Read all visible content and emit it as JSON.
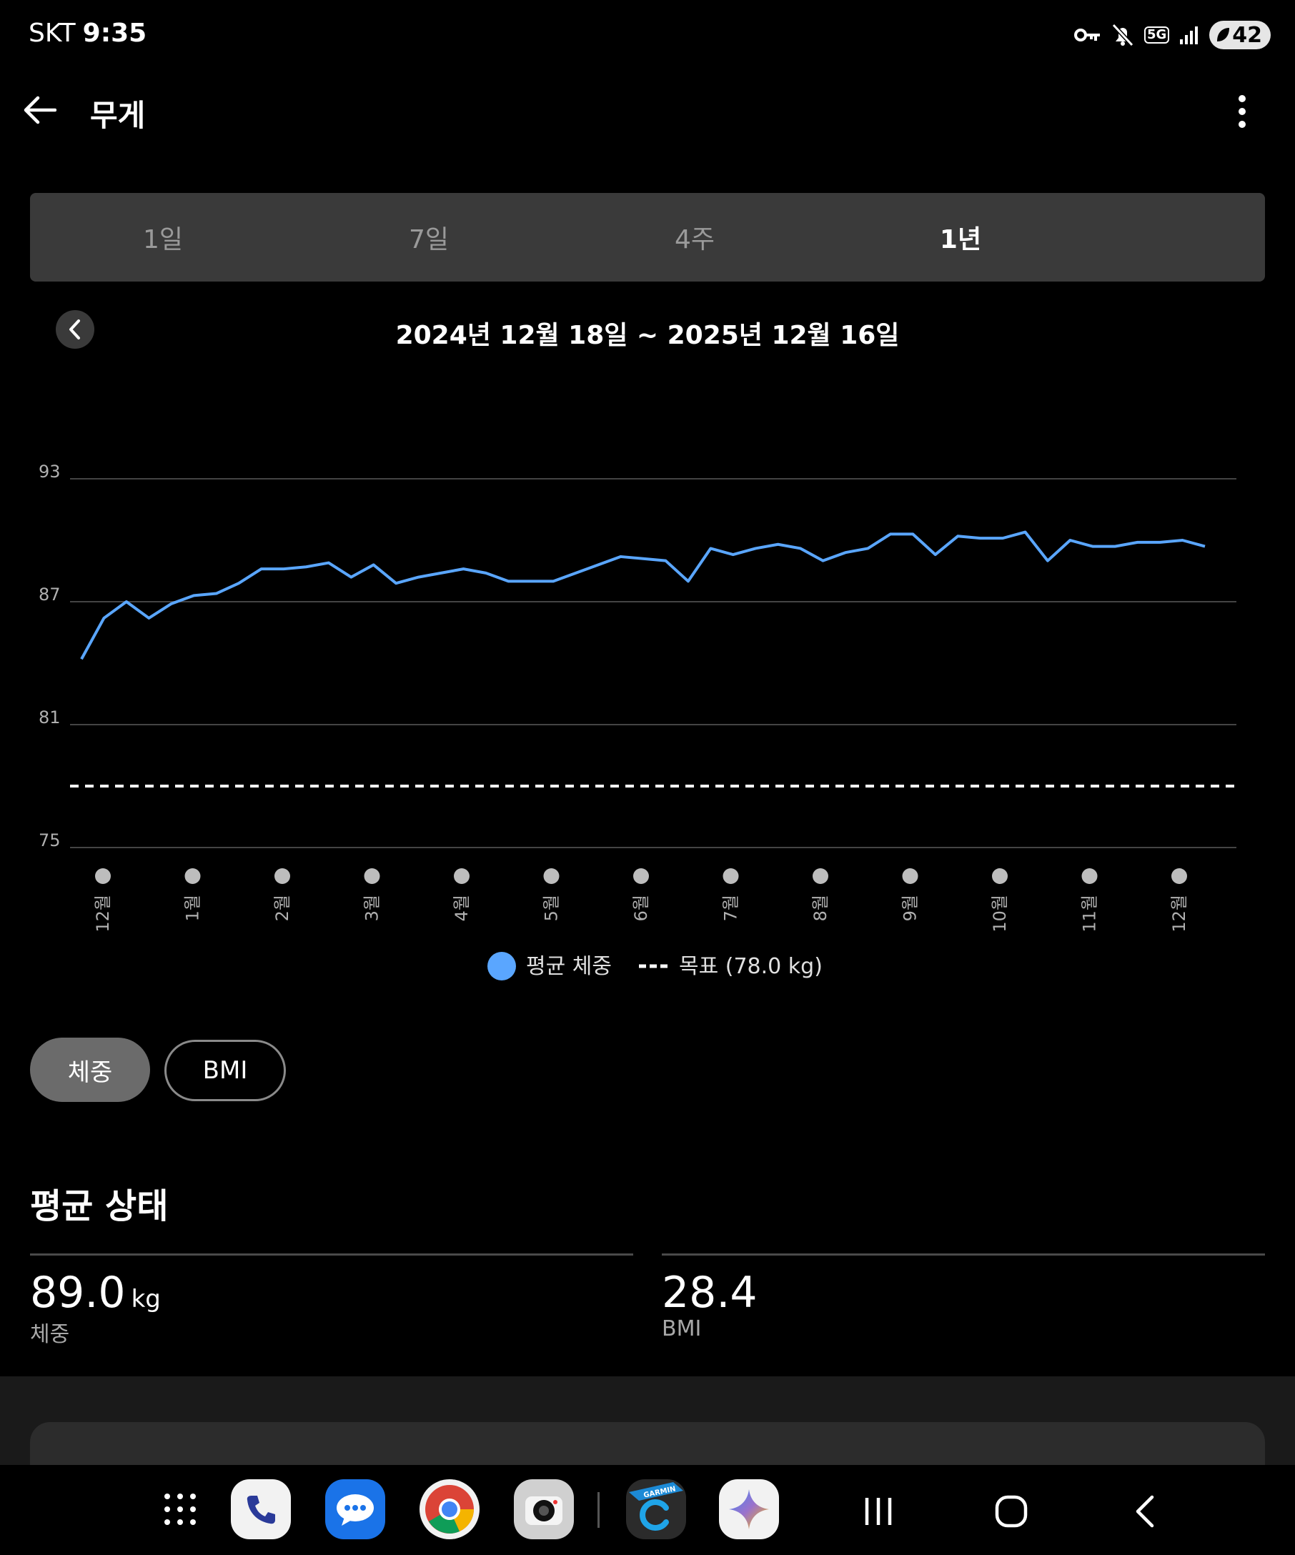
{
  "status_bar": {
    "carrier": "SKT",
    "time": "9:35",
    "network": "5G",
    "battery": "42"
  },
  "header": {
    "title": "무게"
  },
  "period_tabs": [
    {
      "label": "1일",
      "selected": false
    },
    {
      "label": "7일",
      "selected": false
    },
    {
      "label": "4주",
      "selected": false
    },
    {
      "label": "1년",
      "selected": true
    }
  ],
  "date_range": "2024년 12월 18일 ~ 2025년 12월 16일",
  "chart_data": {
    "type": "line",
    "ylim": [
      75,
      93
    ],
    "yticks": [
      93,
      87,
      81,
      75
    ],
    "month_labels": [
      "12월",
      "1월",
      "2월",
      "3월",
      "4월",
      "5월",
      "6월",
      "7월",
      "8월",
      "9월",
      "10월",
      "11월",
      "12월"
    ],
    "series": [
      {
        "name": "평균 체중",
        "color": "#5aa6ff",
        "values": [
          84.2,
          86.2,
          87.0,
          86.2,
          86.9,
          87.3,
          87.4,
          87.9,
          88.6,
          88.6,
          88.7,
          88.9,
          88.2,
          88.8,
          87.9,
          88.2,
          88.4,
          88.6,
          88.4,
          88.0,
          88.0,
          88.0,
          88.4,
          88.8,
          89.2,
          89.1,
          89.0,
          88.0,
          89.6,
          89.3,
          89.6,
          89.8,
          89.6,
          89.0,
          89.4,
          89.6,
          90.3,
          90.3,
          89.3,
          90.2,
          90.1,
          90.1,
          90.4,
          89.0,
          90.0,
          89.7,
          89.7,
          89.9,
          89.9,
          90.0,
          89.7
        ]
      }
    ],
    "goal": {
      "name": "목표 (78.0 kg)",
      "value": 78.0,
      "style": "dashed",
      "color": "#ffffff"
    },
    "legend": {
      "placement": "bottom-center"
    },
    "grid": true
  },
  "toggles": {
    "weight": "체중",
    "bmi": "BMI",
    "selected": "weight"
  },
  "average_status": {
    "title": "평균 상태",
    "weight_value": "89.0",
    "weight_unit": "kg",
    "weight_label": "체중",
    "bmi_value": "28.4",
    "bmi_label": "BMI"
  },
  "taskbar": {
    "apps": [
      "app-drawer-icon",
      "phone-icon",
      "messages-icon",
      "chrome-icon",
      "camera-icon",
      "garmin-connect-icon",
      "gemini-icon"
    ],
    "nav": [
      "recents-icon",
      "home-icon",
      "back-icon"
    ],
    "garmin_label": "GARMIN"
  }
}
